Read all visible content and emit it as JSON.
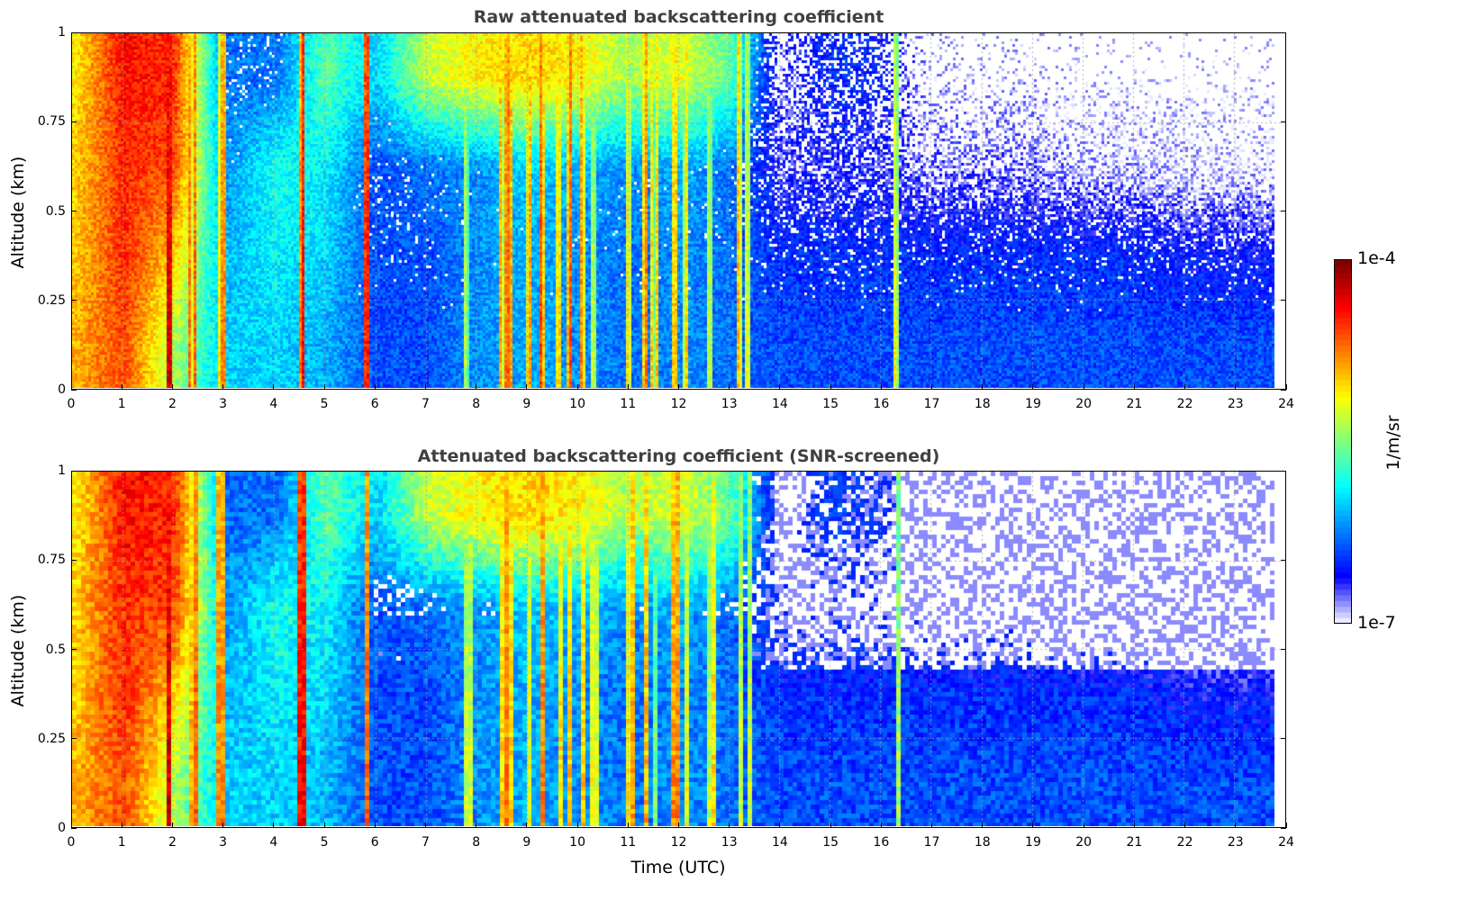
{
  "chart_data": [
    {
      "type": "heatmap",
      "title": "Raw attenuated backscattering coefficient",
      "xlabel": "",
      "ylabel": "Altitude (km)",
      "xlim": [
        0,
        24
      ],
      "ylim": [
        0,
        1
      ],
      "xticks": [
        "0",
        "1",
        "2",
        "3",
        "4",
        "5",
        "6",
        "7",
        "8",
        "9",
        "10",
        "11",
        "12",
        "13",
        "14",
        "15",
        "16",
        "17",
        "18",
        "19",
        "20",
        "21",
        "22",
        "23",
        "24"
      ],
      "yticks": [
        "0",
        "0.25",
        "0.5",
        "0.75",
        "1"
      ],
      "grid": true,
      "screened": false
    },
    {
      "type": "heatmap",
      "title": "Attenuated backscattering coefficient (SNR-screened)",
      "xlabel": "Time (UTC)",
      "ylabel": "Altitude (km)",
      "xlim": [
        0,
        24
      ],
      "ylim": [
        0,
        1
      ],
      "xticks": [
        "0",
        "1",
        "2",
        "3",
        "4",
        "5",
        "6",
        "7",
        "8",
        "9",
        "10",
        "11",
        "12",
        "13",
        "14",
        "15",
        "16",
        "17",
        "18",
        "19",
        "20",
        "21",
        "22",
        "23",
        "24"
      ],
      "yticks": [
        "0",
        "0.25",
        "0.5",
        "0.75",
        "1"
      ],
      "grid": true,
      "screened": true
    }
  ],
  "colorbar": {
    "label": "1/m/sr",
    "max_label": "1e-4",
    "min_label": "1e-7",
    "log10_range": [
      -7,
      -4
    ],
    "colormap": "jet"
  },
  "data_extent_hours": 23.8,
  "hourly_profiles_log10": {
    "altitude_bands_km": [
      "0-0.25",
      "0.25-0.5",
      "0.5-0.75",
      "0.75-1"
    ],
    "values": [
      [
        -4.9,
        -5.0,
        -5.0,
        -5.1
      ],
      [
        -4.6,
        -4.5,
        -4.5,
        -4.4
      ],
      [
        -5.4,
        -5.0,
        -4.6,
        -4.5
      ],
      [
        -6.0,
        -6.1,
        -6.2,
        -6.3
      ],
      [
        -6.0,
        -5.9,
        -5.8,
        -6.3
      ],
      [
        -6.1,
        -6.0,
        -5.9,
        -5.6
      ],
      [
        -6.4,
        -6.4,
        -6.4,
        -6.0
      ],
      [
        -6.4,
        -6.4,
        -6.3,
        -5.3
      ],
      [
        -6.2,
        -6.2,
        -6.2,
        -5.1
      ],
      [
        -6.1,
        -6.1,
        -6.0,
        -5.0
      ],
      [
        -6.2,
        -6.2,
        -6.1,
        -5.1
      ],
      [
        -6.3,
        -6.3,
        -6.2,
        -5.4
      ],
      [
        -6.2,
        -6.2,
        -6.1,
        -5.2
      ],
      [
        -6.3,
        -6.3,
        -6.3,
        -5.6
      ],
      [
        -6.4,
        -6.5,
        -6.7,
        -6.8
      ],
      [
        -6.4,
        -6.5,
        -6.7,
        -6.5
      ],
      [
        -6.4,
        -6.5,
        -6.7,
        -6.6
      ],
      [
        -6.4,
        -6.5,
        -6.8,
        -6.95
      ],
      [
        -6.4,
        -6.5,
        -6.8,
        -6.95
      ],
      [
        -6.4,
        -6.5,
        -6.8,
        -6.95
      ],
      [
        -6.4,
        -6.5,
        -6.9,
        -7.0
      ],
      [
        -6.4,
        -6.5,
        -6.9,
        -7.0
      ],
      [
        -6.4,
        -6.6,
        -6.95,
        -7.0
      ],
      [
        -6.4,
        -6.6,
        -6.95,
        -7.0
      ]
    ]
  },
  "columns_log10": [
    [
      1.45,
      -5.5
    ],
    [
      1.9,
      -4.5
    ],
    [
      2.35,
      -5.2
    ],
    [
      2.9,
      -5.2
    ],
    [
      2.97,
      -5.0
    ],
    [
      4.5,
      -4.8
    ],
    [
      5.8,
      -4.7
    ],
    [
      7.8,
      -5.7
    ],
    [
      8.5,
      -5.3
    ],
    [
      8.65,
      -5.0
    ],
    [
      9.0,
      -5.2
    ],
    [
      9.3,
      -5.0
    ],
    [
      9.6,
      -5.3
    ],
    [
      9.8,
      -5.0
    ],
    [
      10.1,
      -5.2
    ],
    [
      10.3,
      -5.6
    ],
    [
      11.0,
      -5.4
    ],
    [
      11.3,
      -5.1
    ],
    [
      11.5,
      -5.5
    ],
    [
      11.9,
      -5.2
    ],
    [
      12.1,
      -5.4
    ],
    [
      12.6,
      -5.6
    ],
    [
      13.2,
      -5.3
    ],
    [
      13.35,
      -5.5
    ],
    [
      16.3,
      -5.5
    ]
  ]
}
